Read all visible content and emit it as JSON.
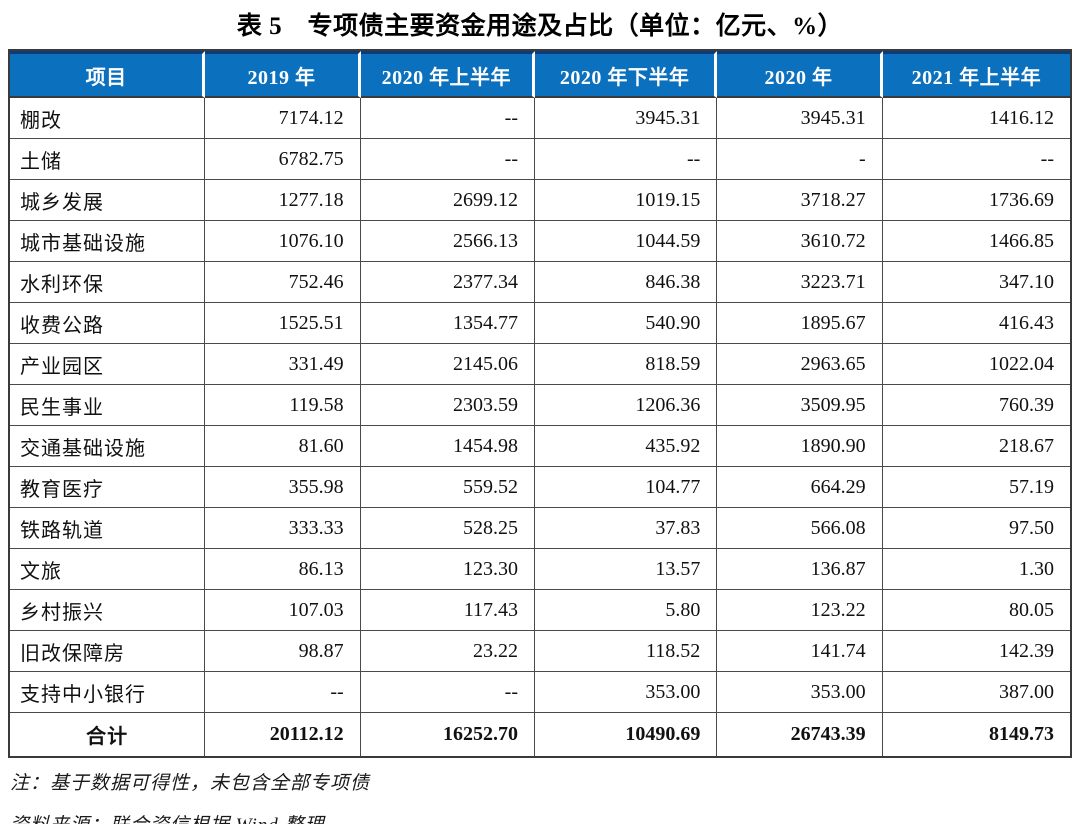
{
  "title": "表 5　专项债主要资金用途及占比（单位：亿元、%）",
  "table": {
    "columns": [
      "项目",
      "2019 年",
      "2020 年上半年",
      "2020 年下半年",
      "2020 年",
      "2021 年上半年"
    ],
    "rows": [
      [
        "棚改",
        "7174.12",
        "--",
        "3945.31",
        "3945.31",
        "1416.12"
      ],
      [
        "土储",
        "6782.75",
        "--",
        "--",
        "-",
        "--"
      ],
      [
        "城乡发展",
        "1277.18",
        "2699.12",
        "1019.15",
        "3718.27",
        "1736.69"
      ],
      [
        "城市基础设施",
        "1076.10",
        "2566.13",
        "1044.59",
        "3610.72",
        "1466.85"
      ],
      [
        "水利环保",
        "752.46",
        "2377.34",
        "846.38",
        "3223.71",
        "347.10"
      ],
      [
        "收费公路",
        "1525.51",
        "1354.77",
        "540.90",
        "1895.67",
        "416.43"
      ],
      [
        "产业园区",
        "331.49",
        "2145.06",
        "818.59",
        "2963.65",
        "1022.04"
      ],
      [
        "民生事业",
        "119.58",
        "2303.59",
        "1206.36",
        "3509.95",
        "760.39"
      ],
      [
        "交通基础设施",
        "81.60",
        "1454.98",
        "435.92",
        "1890.90",
        "218.67"
      ],
      [
        "教育医疗",
        "355.98",
        "559.52",
        "104.77",
        "664.29",
        "57.19"
      ],
      [
        "铁路轨道",
        "333.33",
        "528.25",
        "37.83",
        "566.08",
        "97.50"
      ],
      [
        "文旅",
        "86.13",
        "123.30",
        "13.57",
        "136.87",
        "1.30"
      ],
      [
        "乡村振兴",
        "107.03",
        "117.43",
        "5.80",
        "123.22",
        "80.05"
      ],
      [
        "旧改保障房",
        "98.87",
        "23.22",
        "118.52",
        "141.74",
        "142.39"
      ],
      [
        "支持中小银行",
        "--",
        "--",
        "353.00",
        "353.00",
        "387.00"
      ]
    ],
    "total_row": [
      "合计",
      "20112.12",
      "16252.70",
      "10490.69",
      "26743.39",
      "8149.73"
    ]
  },
  "notes": [
    "注：基于数据可得性，未包含全部专项债",
    "资料来源：联合资信根据 Wind 整理"
  ],
  "colors": {
    "header_bg": "#0b70be",
    "header_top_border": "#0d3c78",
    "header_text": "#ffffff",
    "grid_border": "#4a4a4a"
  },
  "chart_data": {
    "type": "table",
    "title": "表 5　专项债主要资金用途及占比（单位：亿元、%）",
    "categories": [
      "棚改",
      "土储",
      "城乡发展",
      "城市基础设施",
      "水利环保",
      "收费公路",
      "产业园区",
      "民生事业",
      "交通基础设施",
      "教育医疗",
      "铁路轨道",
      "文旅",
      "乡村振兴",
      "旧改保障房",
      "支持中小银行",
      "合计"
    ],
    "series": [
      {
        "name": "2019 年",
        "values": [
          7174.12,
          6782.75,
          1277.18,
          1076.1,
          752.46,
          1525.51,
          331.49,
          119.58,
          81.6,
          355.98,
          333.33,
          86.13,
          107.03,
          98.87,
          null,
          20112.12
        ]
      },
      {
        "name": "2020 年上半年",
        "values": [
          null,
          null,
          2699.12,
          2566.13,
          2377.34,
          1354.77,
          2145.06,
          2303.59,
          1454.98,
          559.52,
          528.25,
          123.3,
          117.43,
          23.22,
          null,
          16252.7
        ]
      },
      {
        "name": "2020 年下半年",
        "values": [
          3945.31,
          null,
          1019.15,
          1044.59,
          846.38,
          540.9,
          818.59,
          1206.36,
          435.92,
          104.77,
          37.83,
          13.57,
          5.8,
          118.52,
          353.0,
          10490.69
        ]
      },
      {
        "name": "2020 年",
        "values": [
          3945.31,
          null,
          3718.27,
          3610.72,
          3223.71,
          1895.67,
          2963.65,
          3509.95,
          1890.9,
          664.29,
          566.08,
          136.87,
          123.22,
          141.74,
          353.0,
          26743.39
        ]
      },
      {
        "name": "2021 年上半年",
        "values": [
          1416.12,
          null,
          1736.69,
          1466.85,
          347.1,
          416.43,
          1022.04,
          760.39,
          218.67,
          57.19,
          97.5,
          1.3,
          80.05,
          142.39,
          387.0,
          8149.73
        ]
      }
    ]
  }
}
